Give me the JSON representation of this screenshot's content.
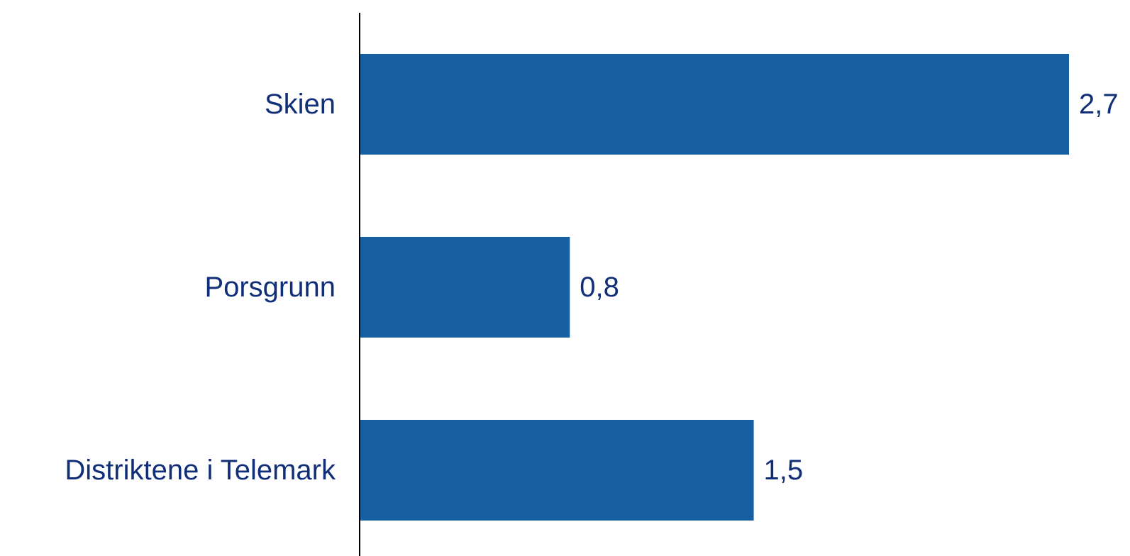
{
  "chart_data": {
    "type": "bar",
    "orientation": "horizontal",
    "categories": [
      "Skien",
      "Porsgrunn",
      "Distriktene i Telemark"
    ],
    "values": [
      2.7,
      0.8,
      1.5
    ],
    "value_labels": [
      "2,7",
      "0,8",
      "1,5"
    ],
    "xlim": [
      0,
      2.7
    ],
    "grid": false,
    "legend": "none",
    "colors": {
      "bar": "#1660a2",
      "text": "#102f78",
      "axis": "#000000"
    }
  }
}
